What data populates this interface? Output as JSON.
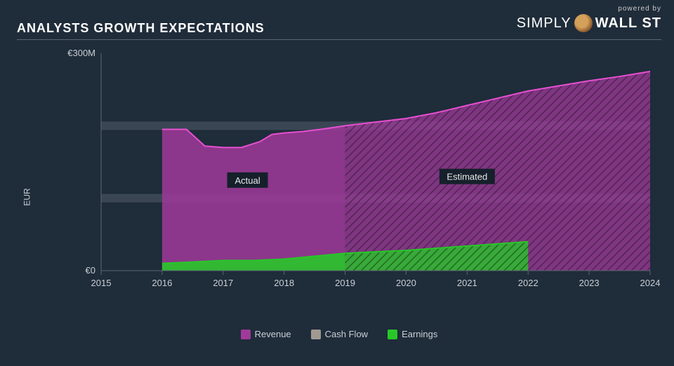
{
  "branding": {
    "powered_by": "powered by",
    "brand_light": "SIMPLY",
    "brand_bold": "WALL ST"
  },
  "title": "ANALYSTS GROWTH EXPECTATIONS",
  "chart": {
    "type": "area",
    "background_color": "#1f2c3a",
    "grid_band_color": "#3a4654",
    "axis_color": "#5a6673",
    "text_color": "#c9cfd5",
    "y_axis_label": "EUR",
    "y_max_label": "€300M",
    "y_min_label": "€0",
    "ylim": [
      0,
      300
    ],
    "grid_y_values": [
      100,
      200
    ],
    "x_ticks": [
      "2015",
      "2016",
      "2017",
      "2018",
      "2019",
      "2020",
      "2021",
      "2022",
      "2023",
      "2024"
    ],
    "split_year": 2019,
    "region_actual_label": "Actual",
    "region_estimated_label": "Estimated",
    "region_label_bg": "#15202b",
    "series": {
      "revenue": {
        "label": "Revenue",
        "color_fill": "#a03a9a",
        "color_stroke": "#e84fd1",
        "data": [
          [
            2016,
            195
          ],
          [
            2016.4,
            195
          ],
          [
            2016.7,
            172
          ],
          [
            2017,
            170
          ],
          [
            2017.3,
            170
          ],
          [
            2017.6,
            178
          ],
          [
            2017.8,
            188
          ],
          [
            2018,
            190
          ],
          [
            2018.3,
            192
          ],
          [
            2018.6,
            195
          ],
          [
            2019,
            200
          ],
          [
            2019.5,
            205
          ],
          [
            2020,
            210
          ],
          [
            2020.5,
            218
          ],
          [
            2021,
            228
          ],
          [
            2021.5,
            238
          ],
          [
            2022,
            248
          ],
          [
            2022.5,
            255
          ],
          [
            2023,
            262
          ],
          [
            2023.5,
            268
          ],
          [
            2024,
            275
          ]
        ]
      },
      "cashflow": {
        "label": "Cash Flow",
        "color_fill": "#a09a92",
        "color_stroke": "#a09a92",
        "data": []
      },
      "earnings": {
        "label": "Earnings",
        "color_fill": "#28c728",
        "color_stroke": "#28c728",
        "data": [
          [
            2016,
            10
          ],
          [
            2016.5,
            12
          ],
          [
            2017,
            14
          ],
          [
            2017.5,
            14
          ],
          [
            2018,
            16
          ],
          [
            2018.5,
            20
          ],
          [
            2019,
            24
          ],
          [
            2019.5,
            26
          ],
          [
            2020,
            28
          ],
          [
            2020.5,
            31
          ],
          [
            2021,
            34
          ],
          [
            2021.5,
            37
          ],
          [
            2022,
            40
          ]
        ]
      }
    }
  }
}
